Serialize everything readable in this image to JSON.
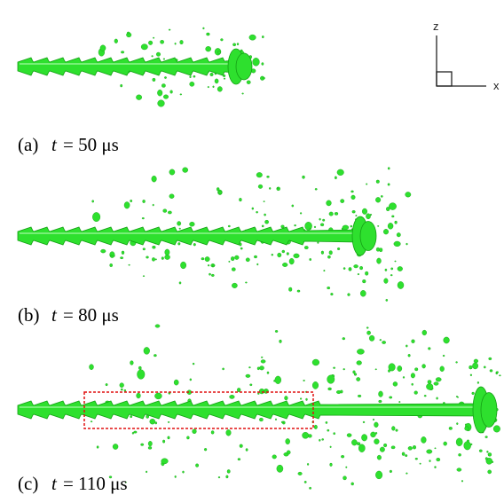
{
  "figure": {
    "axes": {
      "vertical": "z",
      "horizontal": "x"
    },
    "panels": [
      {
        "label": "(a)",
        "variable": "t",
        "value": "= 50 μs"
      },
      {
        "label": "(b)",
        "variable": "t",
        "value": "= 80 μs"
      },
      {
        "label": "(c)",
        "variable": "t",
        "value": "= 110 μs"
      }
    ]
  }
}
